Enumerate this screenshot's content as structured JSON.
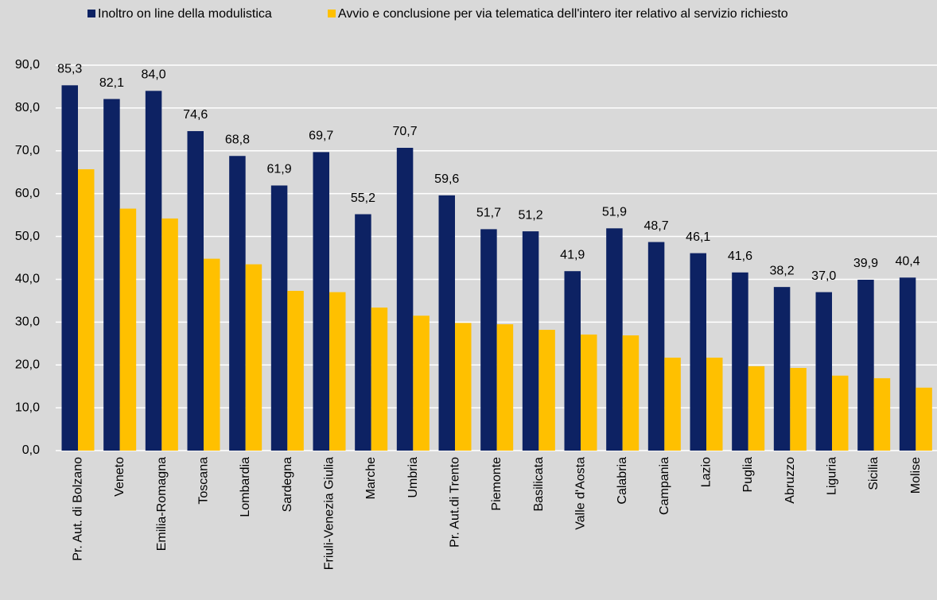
{
  "chart_data": {
    "type": "bar",
    "categories": [
      "Pr. Aut. di Bolzano",
      "Veneto",
      "Emilia-Romagna",
      "Toscana",
      "Lombardia",
      "Sardegna",
      "Friuli-Venezia Giulia",
      "Marche",
      "Umbria",
      "Pr. Aut.di Trento",
      "Piemonte",
      "Basilicata",
      "Valle d'Aosta",
      "Calabria",
      "Campania",
      "Lazio",
      "Puglia",
      "Abruzzo",
      "Liguria",
      "Sicilia",
      "Molise"
    ],
    "series": [
      {
        "name": "Inoltro on line della modulistica",
        "color": "#0d2263",
        "values": [
          85.3,
          82.1,
          84.0,
          74.6,
          68.8,
          61.9,
          69.7,
          55.2,
          70.7,
          59.6,
          51.7,
          51.2,
          41.9,
          51.9,
          48.7,
          46.1,
          41.6,
          38.2,
          37.0,
          39.9,
          40.4
        ],
        "value_labels": [
          "85,3",
          "82,1",
          "84,0",
          "74,6",
          "68,8",
          "61,9",
          "69,7",
          "55,2",
          "70,7",
          "59,6",
          "51,7",
          "51,2",
          "41,9",
          "51,9",
          "48,7",
          "46,1",
          "41,6",
          "38,2",
          "37,0",
          "39,9",
          "40,4"
        ]
      },
      {
        "name": "Avvio e conclusione per via telematica dell'intero iter relativo al servizio richiesto",
        "color": "#ffc000",
        "values": [
          65.7,
          56.5,
          54.2,
          44.8,
          43.5,
          37.3,
          37.0,
          33.4,
          31.5,
          29.8,
          29.5,
          28.2,
          27.1,
          26.9,
          21.7,
          21.7,
          19.7,
          19.3,
          17.5,
          16.9,
          14.7
        ]
      }
    ],
    "ylim": [
      0,
      90
    ],
    "yticks": [
      {
        "value": 0,
        "label": "0,0"
      },
      {
        "value": 10,
        "label": "10,0"
      },
      {
        "value": 20,
        "label": "20,0"
      },
      {
        "value": 30,
        "label": "30,0"
      },
      {
        "value": 40,
        "label": "40,0"
      },
      {
        "value": 50,
        "label": "50,0"
      },
      {
        "value": 60,
        "label": "60,0"
      },
      {
        "value": 70,
        "label": "70,0"
      },
      {
        "value": 80,
        "label": "80,0"
      },
      {
        "value": 90,
        "label": "90,0"
      }
    ],
    "grid": true
  }
}
